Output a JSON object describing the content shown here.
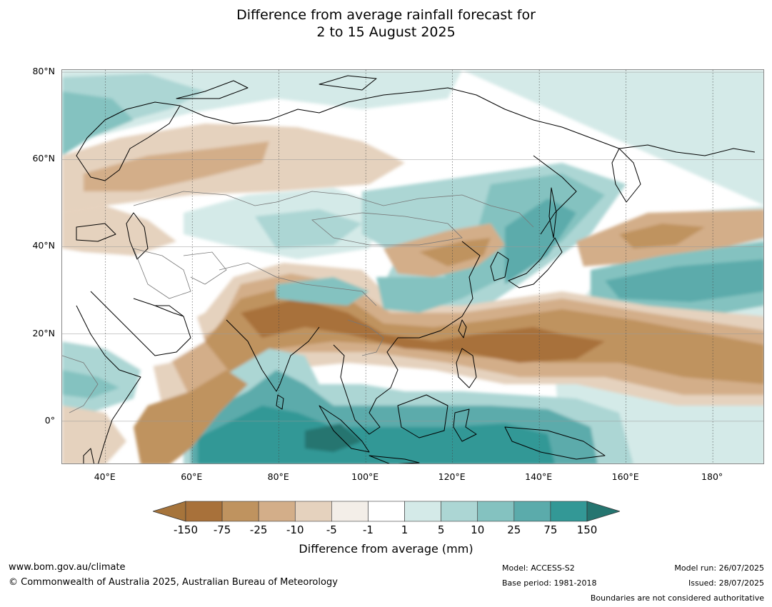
{
  "title": {
    "line1": "Difference from average rainfall forecast for",
    "line2": "2 to 15 August 2025"
  },
  "map": {
    "lat_labels": [
      "80°N",
      "60°N",
      "40°N",
      "20°N",
      "0°"
    ],
    "lon_labels": [
      "40°E",
      "60°E",
      "80°E",
      "100°E",
      "120°E",
      "140°E",
      "160°E",
      "180°"
    ],
    "lat_range": [
      -10,
      80.5
    ],
    "lon_range": [
      30,
      192
    ],
    "lat_ticks": [
      80,
      60,
      40,
      20,
      0
    ],
    "lon_ticks": [
      40,
      60,
      80,
      100,
      120,
      140,
      160,
      180
    ]
  },
  "colorbar": {
    "ticks": [
      "-150",
      "-75",
      "-25",
      "-10",
      "-5",
      "-1",
      "1",
      "5",
      "10",
      "25",
      "75",
      "150"
    ],
    "colors": [
      "#a6743b",
      "#a8713a",
      "#bf935f",
      "#d3ae89",
      "#e5d2be",
      "#f3eee8",
      "#ffffff",
      "#d4eae8",
      "#acd6d4",
      "#84c2c0",
      "#5babab",
      "#339896",
      "#257570"
    ],
    "label": "Difference from average (mm)"
  },
  "footer": {
    "url": "www.bom.gov.au/climate",
    "copyright": "© Commonwealth of Australia 2025, Australian Bureau of Meteorology",
    "model": "Model: ACCESS-S2",
    "base_period": "Base period: 1981-2018",
    "model_run": "Model run: 26/07/2025",
    "issued": "Issued: 28/07/2025",
    "disclaimer": "Boundaries are not considered authoritative"
  }
}
